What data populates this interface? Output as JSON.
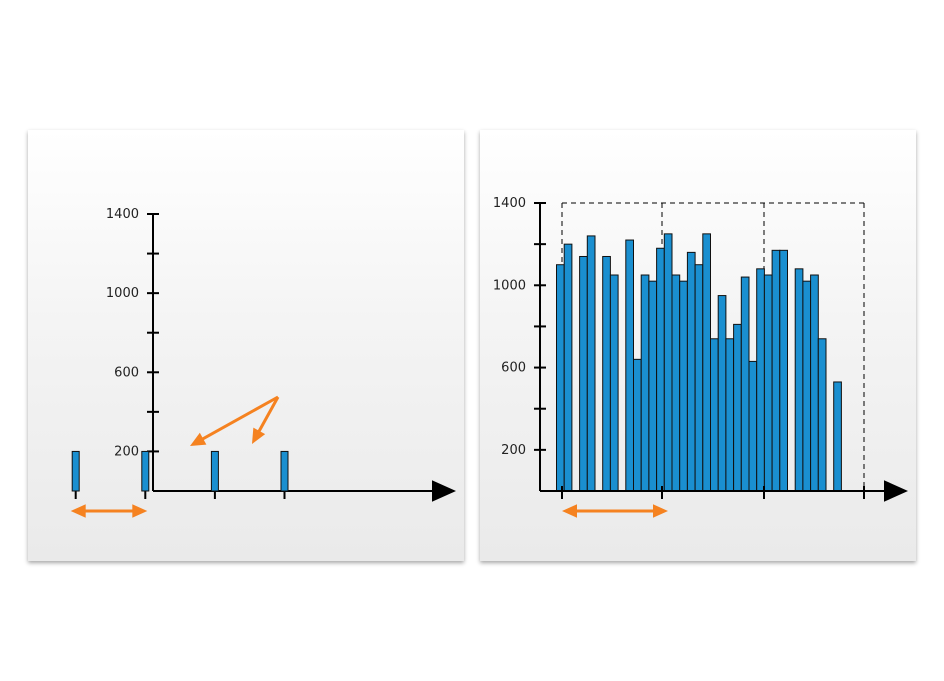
{
  "colors": {
    "bar": "#1a8fd0",
    "bar_stroke": "#111111",
    "axis": "#000000",
    "arrow": "#f58220"
  },
  "chart_data": [
    {
      "type": "bar",
      "title": "",
      "xlabel": "",
      "ylabel": "",
      "ylim": [
        0,
        1400
      ],
      "y_tick_labels": [
        "1400",
        "1000",
        "600",
        "200"
      ],
      "y_tick_values": [
        1400,
        1000,
        600,
        200
      ],
      "x": [
        1,
        4,
        7,
        10
      ],
      "values": [
        200,
        200,
        200,
        200
      ],
      "annotations": [
        "double-headed arrow marking the spacing between bars",
        "arrows pointing to the first two bars"
      ]
    },
    {
      "type": "bar",
      "title": "",
      "xlabel": "",
      "ylabel": "",
      "ylim": [
        0,
        1400
      ],
      "y_tick_labels": [
        "1400",
        "1000",
        "600",
        "200"
      ],
      "y_tick_values": [
        1400,
        1000,
        600,
        200
      ],
      "x": [
        1,
        2,
        4,
        5,
        7,
        8,
        10,
        11,
        12,
        13,
        14,
        15,
        16,
        17,
        18,
        19,
        20,
        21,
        22,
        23,
        24,
        25,
        26,
        27,
        28,
        29,
        30,
        32,
        33,
        34,
        35,
        37,
        38,
        39
      ],
      "values": [
        1100,
        1200,
        1140,
        1240,
        1140,
        1050,
        1220,
        640,
        1050,
        1020,
        1180,
        1250,
        1050,
        1020,
        1160,
        1100,
        1250,
        740,
        950,
        740,
        810,
        1040,
        630,
        1080,
        1050,
        1170,
        1170,
        1080,
        1020,
        1050,
        740,
        530,
        0,
        0
      ],
      "annotations": [
        "dashed boxes grouping bars into windows",
        "double-headed arrow marking the window width"
      ]
    }
  ]
}
